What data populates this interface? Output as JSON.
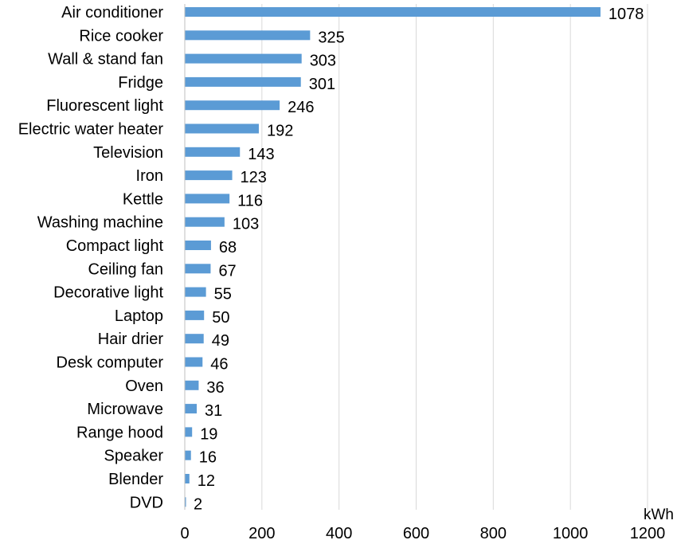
{
  "chart_data": {
    "type": "bar",
    "orientation": "horizontal",
    "categories": [
      "Air conditioner",
      "Rice cooker",
      "Wall & stand fan",
      "Fridge",
      "Fluorescent light",
      "Electric water heater",
      "Television",
      "Iron",
      "Kettle",
      "Washing machine",
      "Compact light",
      "Ceiling fan",
      "Decorative light",
      "Laptop",
      "Hair drier",
      "Desk computer",
      "Oven",
      "Microwave",
      "Range hood",
      "Speaker",
      "Blender",
      "DVD"
    ],
    "values": [
      1078,
      325,
      303,
      301,
      246,
      192,
      143,
      123,
      116,
      103,
      68,
      67,
      55,
      50,
      49,
      46,
      36,
      31,
      19,
      16,
      12,
      2
    ],
    "data_labels": [
      "1078",
      "325",
      "303",
      "301",
      "246",
      "192",
      "143",
      "123",
      "116",
      "103",
      "68",
      "67",
      "55",
      "50",
      "49",
      "46",
      "36",
      "31",
      "19",
      "16",
      "12",
      "2"
    ],
    "x_ticks": [
      "0",
      "200",
      "400",
      "600",
      "800",
      "1000",
      "1200"
    ],
    "xlim": [
      0,
      1200
    ],
    "unit_label": "kWh",
    "title": "",
    "xlabel": "",
    "ylabel": "",
    "grid": "vertical gridlines",
    "legend": "none",
    "colors": {
      "bar": "#5b9bd5",
      "grid": "#d9d9d9",
      "axis": "#bfbfbf",
      "text": "#000000"
    }
  }
}
